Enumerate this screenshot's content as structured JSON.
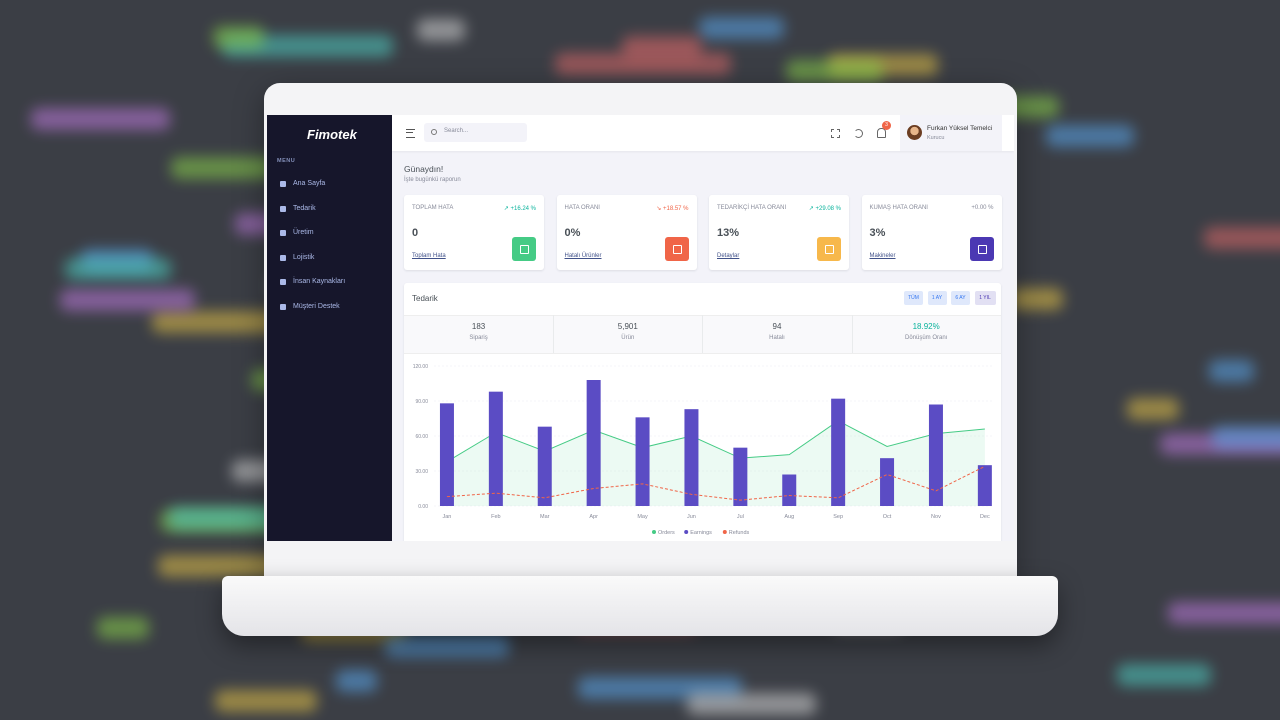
{
  "sidebar": {
    "logo": "Fimotek",
    "menu_title": "MENU",
    "items": [
      "Ana Sayfa",
      "Tedarik",
      "Üretim",
      "Lojistik",
      "İnsan Kaynakları",
      "Müşteri Destek"
    ]
  },
  "topbar": {
    "search_placeholder": "Search...",
    "notification_count": "3",
    "user_name": "Furkan Yüksel Temelci",
    "user_role": "Kurucu"
  },
  "greeting": {
    "title": "Günaydın!",
    "subtitle": "İşte bugünkü raporun"
  },
  "cards": [
    {
      "label": "TOPLAM HATA",
      "change": "↗ +16.24 %",
      "change_color": "#0ab39c",
      "value": "0",
      "link": "Toplam Hata",
      "icon_color": "#45cb85"
    },
    {
      "label": "HATA ORANI",
      "change": "↘ +18.57 %",
      "change_color": "#f06548",
      "value": "0%",
      "link": "Hatalı Ürünler",
      "icon_color": "#f06548"
    },
    {
      "label": "TEDARİKÇİ HATA ORANI",
      "change": "↗ +29.08 %",
      "change_color": "#0ab39c",
      "value": "13%",
      "link": "Detaylar",
      "icon_color": "#f7b84b"
    },
    {
      "label": "KUMAŞ HATA ORANI",
      "change": "+0.00 %",
      "change_color": "#878a99",
      "value": "3%",
      "link": "Makineler",
      "icon_color": "#4b38b3"
    }
  ],
  "panel": {
    "title": "Tedarik",
    "filters": [
      "TÜM",
      "1 AY",
      "6 AY",
      "1 YIL"
    ],
    "stats": [
      {
        "value": "183",
        "label": "Sipariş"
      },
      {
        "value": "5,901",
        "label": "Ürün"
      },
      {
        "value": "94",
        "label": "Hatalı"
      },
      {
        "value": "18.92%",
        "label": "Dönüşüm Oranı"
      }
    ]
  },
  "chart_data": {
    "type": "combo",
    "categories": [
      "Jan",
      "Feb",
      "Mar",
      "Apr",
      "May",
      "Jun",
      "Jul",
      "Aug",
      "Sep",
      "Oct",
      "Nov",
      "Dec"
    ],
    "series": [
      {
        "name": "Orders",
        "kind": "area",
        "color": "#45cb85",
        "values": [
          38,
          63,
          47,
          65,
          50,
          60,
          41,
          44,
          73,
          51,
          62,
          66
        ]
      },
      {
        "name": "Earnings",
        "kind": "bar",
        "color": "#5b4cc4",
        "values": [
          88,
          98,
          68,
          108,
          76,
          83,
          50,
          27,
          92,
          41,
          87,
          35
        ]
      },
      {
        "name": "Refunds",
        "kind": "dashed",
        "color": "#f06548",
        "values": [
          8,
          11,
          7,
          15,
          19,
          10,
          5,
          9,
          7,
          27,
          13,
          34
        ]
      }
    ],
    "ylim": [
      0,
      120
    ],
    "yticks": [
      {
        "value": 0,
        "label": "0.00"
      },
      {
        "value": 30,
        "label": "30.00"
      },
      {
        "value": 60,
        "label": "60.00"
      },
      {
        "value": 90,
        "label": "90.00"
      },
      {
        "value": 120,
        "label": "120.00"
      }
    ],
    "grid": true
  }
}
